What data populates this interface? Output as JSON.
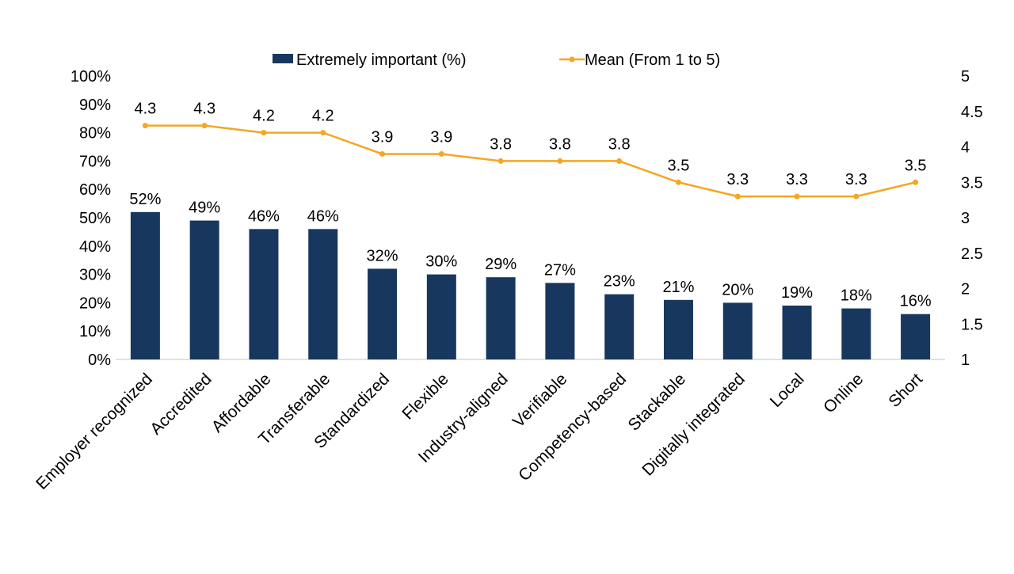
{
  "chart_data": {
    "type": "bar",
    "categories": [
      "Employer recognized",
      "Accredited",
      "Affordable",
      "Transferable",
      "Standardized",
      "Flexible",
      "Industry-aligned",
      "Verifiable",
      "Competency-based",
      "Stackable",
      "Digitally integrated",
      "Local",
      "Online",
      "Short"
    ],
    "series": [
      {
        "name": "Extremely important (%)",
        "type": "bar",
        "axis": "left",
        "color": "#17375e",
        "values": [
          52,
          49,
          46,
          46,
          32,
          30,
          29,
          27,
          23,
          21,
          20,
          19,
          18,
          16
        ],
        "labels": [
          "52%",
          "49%",
          "46%",
          "46%",
          "32%",
          "30%",
          "29%",
          "27%",
          "23%",
          "21%",
          "20%",
          "19%",
          "18%",
          "16%"
        ]
      },
      {
        "name": "Mean (From 1 to 5)",
        "type": "line",
        "axis": "right",
        "color": "#f5a623",
        "values": [
          4.3,
          4.3,
          4.2,
          4.2,
          3.9,
          3.9,
          3.8,
          3.8,
          3.8,
          3.5,
          3.3,
          3.3,
          3.3,
          3.5
        ],
        "labels": [
          "4.3",
          "4.3",
          "4.2",
          "4.2",
          "3.9",
          "3.9",
          "3.8",
          "3.8",
          "3.8",
          "3.5",
          "3.3",
          "3.3",
          "3.3",
          "3.5"
        ]
      }
    ],
    "y_left": {
      "range": [
        0,
        100
      ],
      "ticks": [
        0,
        10,
        20,
        30,
        40,
        50,
        60,
        70,
        80,
        90,
        100
      ],
      "tick_labels": [
        "0%",
        "10%",
        "20%",
        "30%",
        "40%",
        "50%",
        "60%",
        "70%",
        "80%",
        "90%",
        "100%"
      ]
    },
    "y_right": {
      "range": [
        1,
        5
      ],
      "ticks": [
        1,
        1.5,
        2,
        2.5,
        3,
        3.5,
        4,
        4.5,
        5
      ],
      "tick_labels": [
        "1",
        "1.5",
        "2",
        "2.5",
        "3",
        "3.5",
        "4",
        "4.5",
        "5"
      ]
    },
    "legend": {
      "position": "top",
      "items": [
        "Extremely important (%)",
        "Mean (From 1 to 5)"
      ]
    },
    "grid": false,
    "title": "",
    "xlabel": "",
    "ylabel": ""
  }
}
